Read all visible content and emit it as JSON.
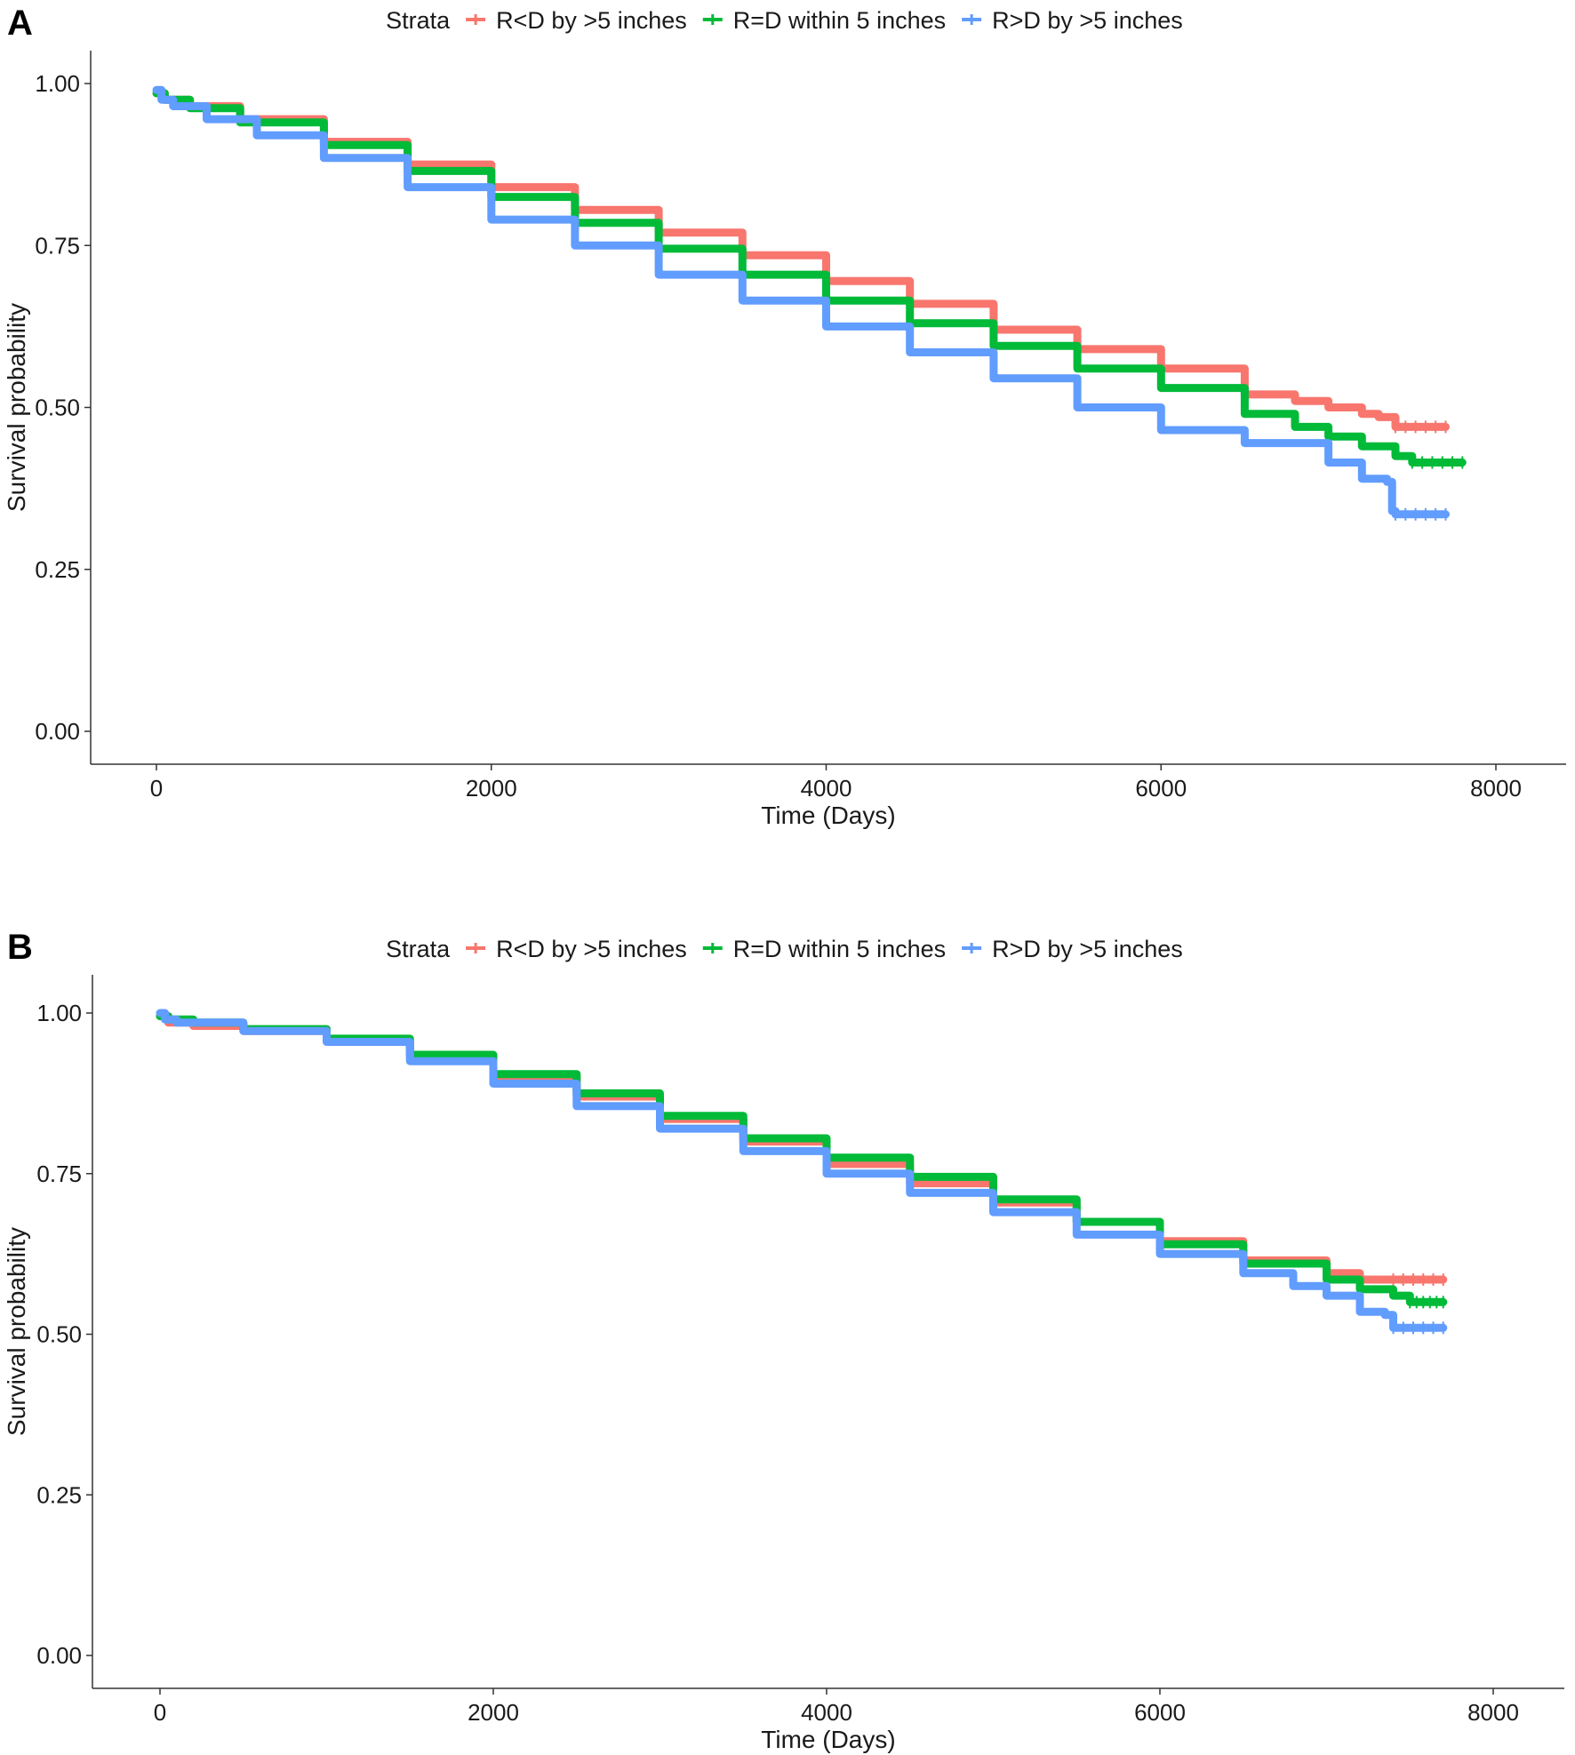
{
  "panels": [
    {
      "letter": "A"
    },
    {
      "letter": "B"
    }
  ],
  "chart_data": [
    {
      "type": "line",
      "step": true,
      "xlabel": "Time (Days)",
      "ylabel": "Survival probability",
      "xlim": [
        0,
        8000
      ],
      "ylim": [
        0,
        1
      ],
      "xticks": [
        "0",
        "2000",
        "4000",
        "6000",
        "8000"
      ],
      "yticks": [
        "0.00",
        "0.25",
        "0.50",
        "0.75",
        "1.00"
      ],
      "legend": {
        "title": "Strata",
        "position": "top"
      },
      "grid": false,
      "series": [
        {
          "name": "R<D by >5 inches",
          "color": "#F8766D",
          "x": [
            0,
            50,
            200,
            500,
            1000,
            1500,
            2000,
            2500,
            3000,
            3500,
            4000,
            4500,
            5000,
            5500,
            6000,
            6500,
            6800,
            7000,
            7200,
            7300,
            7400,
            7700
          ],
          "y": [
            0.985,
            0.975,
            0.965,
            0.945,
            0.91,
            0.875,
            0.84,
            0.805,
            0.77,
            0.735,
            0.695,
            0.66,
            0.62,
            0.59,
            0.56,
            0.52,
            0.51,
            0.5,
            0.49,
            0.485,
            0.47,
            0.47
          ]
        },
        {
          "name": "R=D within 5 inches",
          "color": "#00BA38",
          "x": [
            0,
            50,
            200,
            500,
            1000,
            1500,
            2000,
            2500,
            3000,
            3500,
            4000,
            4500,
            5000,
            5500,
            6000,
            6500,
            6800,
            7000,
            7200,
            7400,
            7500,
            7800
          ],
          "y": [
            0.985,
            0.975,
            0.962,
            0.94,
            0.905,
            0.865,
            0.825,
            0.785,
            0.745,
            0.705,
            0.665,
            0.63,
            0.595,
            0.56,
            0.53,
            0.49,
            0.47,
            0.455,
            0.44,
            0.425,
            0.415,
            0.415
          ]
        },
        {
          "name": "R>D by >5 inches",
          "color": "#619CFF",
          "x": [
            0,
            30,
            100,
            300,
            600,
            1000,
            1500,
            2000,
            2500,
            3000,
            3500,
            4000,
            4500,
            5000,
            5500,
            6000,
            6500,
            7000,
            7200,
            7350,
            7380,
            7400,
            7700
          ],
          "y": [
            0.99,
            0.975,
            0.965,
            0.945,
            0.92,
            0.885,
            0.84,
            0.79,
            0.75,
            0.705,
            0.665,
            0.625,
            0.585,
            0.545,
            0.5,
            0.465,
            0.445,
            0.415,
            0.39,
            0.385,
            0.34,
            0.335,
            0.335
          ]
        }
      ]
    },
    {
      "type": "line",
      "step": true,
      "xlabel": "Time (Days)",
      "ylabel": "Survival probability",
      "xlim": [
        0,
        8000
      ],
      "ylim": [
        0,
        1
      ],
      "xticks": [
        "0",
        "2000",
        "4000",
        "6000",
        "8000"
      ],
      "yticks": [
        "0.00",
        "0.25",
        "0.50",
        "0.75",
        "1.00"
      ],
      "legend": {
        "title": "Strata",
        "position": "top"
      },
      "grid": false,
      "series": [
        {
          "name": "R<D by >5 inches",
          "color": "#F8766D",
          "x": [
            0,
            50,
            200,
            500,
            1000,
            1500,
            2000,
            2500,
            3000,
            3500,
            4000,
            4500,
            5000,
            5500,
            6000,
            6500,
            7000,
            7200,
            7400,
            7700
          ],
          "y": [
            0.995,
            0.985,
            0.98,
            0.972,
            0.955,
            0.93,
            0.9,
            0.87,
            0.835,
            0.8,
            0.765,
            0.735,
            0.705,
            0.675,
            0.645,
            0.615,
            0.595,
            0.585,
            0.585,
            0.585
          ]
        },
        {
          "name": "R=D within 5 inches",
          "color": "#00BA38",
          "x": [
            0,
            50,
            200,
            500,
            1000,
            1500,
            2000,
            2500,
            3000,
            3500,
            4000,
            4500,
            5000,
            5500,
            6000,
            6500,
            7000,
            7200,
            7400,
            7500,
            7700
          ],
          "y": [
            0.995,
            0.99,
            0.985,
            0.975,
            0.96,
            0.935,
            0.905,
            0.875,
            0.84,
            0.805,
            0.775,
            0.745,
            0.71,
            0.675,
            0.64,
            0.61,
            0.585,
            0.57,
            0.56,
            0.55,
            0.55
          ]
        },
        {
          "name": "R>D by >5 inches",
          "color": "#619CFF",
          "x": [
            0,
            30,
            100,
            500,
            1000,
            1500,
            2000,
            2500,
            3000,
            3500,
            4000,
            4500,
            5000,
            5500,
            6000,
            6500,
            6800,
            7000,
            7200,
            7350,
            7400,
            7700
          ],
          "y": [
            1.0,
            0.99,
            0.985,
            0.972,
            0.955,
            0.925,
            0.89,
            0.855,
            0.82,
            0.785,
            0.75,
            0.72,
            0.69,
            0.655,
            0.625,
            0.595,
            0.575,
            0.56,
            0.535,
            0.53,
            0.51,
            0.51
          ]
        }
      ]
    }
  ]
}
